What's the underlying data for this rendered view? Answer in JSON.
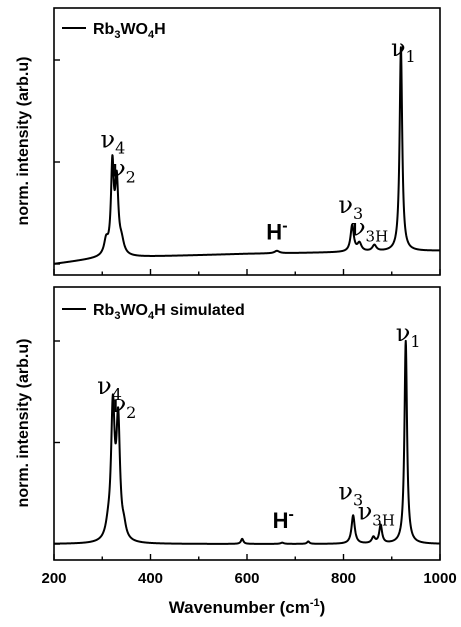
{
  "chart_data": [
    {
      "type": "line",
      "panel": "top",
      "legend": "Rb3WO4H",
      "legend_parts": {
        "a": "Rb",
        "a_sub": "3",
        "b": "WO",
        "b_sub": "4",
        "c": "H"
      },
      "ylabel": "norm. intensity (arb.u)",
      "xlim": [
        200,
        1000
      ],
      "ylim": [
        0,
        1.05
      ],
      "series": [
        {
          "peaks": [
            {
              "x": 308,
              "h": 0.07,
              "w": 5
            },
            {
              "x": 321,
              "h": 0.43,
              "w": 3.5
            },
            {
              "x": 330,
              "h": 0.35,
              "w": 4
            },
            {
              "x": 340,
              "h": 0.06,
              "w": 6
            },
            {
              "x": 662,
              "h": 0.012,
              "w": 6
            },
            {
              "x": 818,
              "h": 0.13,
              "w": 4
            },
            {
              "x": 833,
              "h": 0.04,
              "w": 5
            },
            {
              "x": 864,
              "h": 0.03,
              "w": 5
            },
            {
              "x": 919,
              "h": 1.0,
              "w": 3.2
            }
          ],
          "baseline": [
            [
              200,
              0.0
            ],
            [
              300,
              0.03
            ],
            [
              600,
              0.05
            ],
            [
              1000,
              0.065
            ]
          ]
        }
      ],
      "annotations": [
        {
          "base": "ν",
          "sub": "4",
          "x": 322,
          "y": 0.57
        },
        {
          "base": "ν",
          "sub": "2",
          "x": 344,
          "y": 0.43
        },
        {
          "base": "H",
          "sup": "-",
          "x": 662,
          "y": 0.12
        },
        {
          "base": "ν",
          "sub": "3",
          "x": 815,
          "y": 0.25
        },
        {
          "base": "ν",
          "sub": "3H",
          "x": 854,
          "y": 0.14
        },
        {
          "base": "ν",
          "sub": "1",
          "x": 924,
          "y": 1.02
        }
      ]
    },
    {
      "type": "line",
      "panel": "bottom",
      "legend": "Rb3WO4H simulated",
      "legend_parts": {
        "a": "Rb",
        "a_sub": "3",
        "b": "WO",
        "b_sub": "4",
        "c": "H simulated"
      },
      "ylabel": "norm. intensity (arb.u)",
      "xlabel": "Wavenumber (cm-1)",
      "xlabel_parts": {
        "main": "Wavenumber (cm",
        "sup": "-1",
        "end": ")"
      },
      "xticks": [
        200,
        400,
        600,
        800,
        1000
      ],
      "xlim": [
        200,
        1000
      ],
      "ylim": [
        0,
        1.05
      ],
      "series": [
        {
          "peaks": [
            {
              "x": 312,
              "h": 0.05,
              "w": 6
            },
            {
              "x": 322,
              "h": 0.64,
              "w": 4.5
            },
            {
              "x": 333,
              "h": 0.57,
              "w": 4.5
            },
            {
              "x": 345,
              "h": 0.05,
              "w": 5
            },
            {
              "x": 590,
              "h": 0.025,
              "w": 3
            },
            {
              "x": 673,
              "h": 0.006,
              "w": 4
            },
            {
              "x": 727,
              "h": 0.012,
              "w": 3
            },
            {
              "x": 820,
              "h": 0.14,
              "w": 4
            },
            {
              "x": 862,
              "h": 0.03,
              "w": 4
            },
            {
              "x": 877,
              "h": 0.09,
              "w": 3.5
            },
            {
              "x": 929,
              "h": 1.0,
              "w": 3.2
            }
          ],
          "baseline": [
            [
              200,
              0.0
            ],
            [
              1000,
              0.0
            ]
          ]
        }
      ],
      "annotations": [
        {
          "base": "ν",
          "sub": "4",
          "x": 315,
          "y": 0.74
        },
        {
          "base": "ν",
          "sub": "2",
          "x": 345,
          "y": 0.65
        },
        {
          "base": "H",
          "sup": "-",
          "x": 675,
          "y": 0.08
        },
        {
          "base": "ν",
          "sub": "3",
          "x": 815,
          "y": 0.22
        },
        {
          "base": "ν",
          "sub": "3H",
          "x": 868,
          "y": 0.12
        },
        {
          "base": "ν",
          "sub": "1",
          "x": 934,
          "y": 1.0
        }
      ]
    }
  ]
}
